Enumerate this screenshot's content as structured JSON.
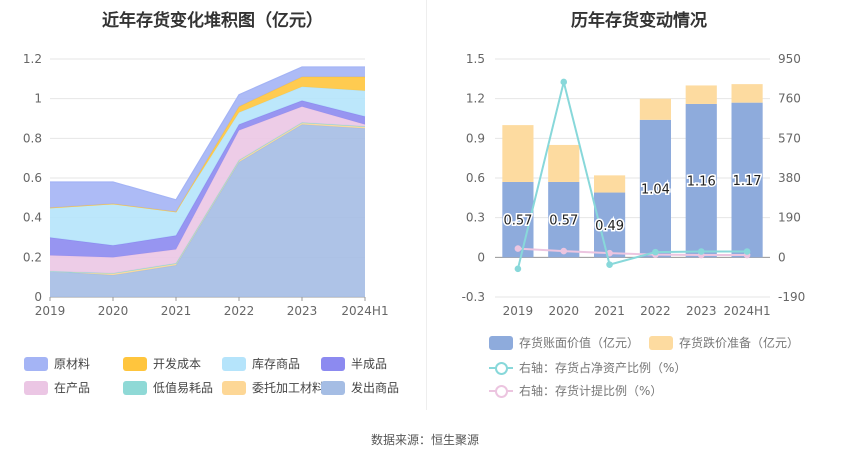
{
  "left_chart": {
    "title": "近年存货变化堆积图（亿元）"
  },
  "right_chart": {
    "title": "历年存货变动情况"
  },
  "footer": "数据来源：恒生聚源",
  "colors": {
    "原材料": "#a4b4f5",
    "开发成本": "#ffc53d",
    "库存商品": "#b5e4fb",
    "半成品": "#8c8af0",
    "在产品": "#ebc6e4",
    "低值易耗品": "#8fd9d6",
    "委托加工材料": "#fdd796",
    "发出商品": "#a5bde4",
    "book_value": "#8eabdc",
    "provision": "#fddba0",
    "ratio_net_assets": "#88d8da",
    "ratio_provision": "#ecc5e0"
  },
  "chart_data": [
    {
      "type": "area",
      "stacked": true,
      "title": "近年存货变化堆积图（亿元）",
      "categories": [
        "2019",
        "2020",
        "2021",
        "2022",
        "2023",
        "2024H1"
      ],
      "ylim": [
        0,
        1.2
      ],
      "yticks": [
        "0",
        "0.2",
        "0.4",
        "0.6",
        "0.8",
        "1",
        "1.2"
      ],
      "grid": true,
      "legend_position": "bottom",
      "series": [
        {
          "name": "发出商品",
          "values": [
            0.13,
            0.11,
            0.16,
            0.68,
            0.87,
            0.85
          ]
        },
        {
          "name": "委托加工材料",
          "values": [
            0.0,
            0.01,
            0.01,
            0.01,
            0.01,
            0.01
          ]
        },
        {
          "name": "低值易耗品",
          "values": [
            0.0,
            0.0,
            0.0,
            0.0,
            0.0,
            0.0
          ]
        },
        {
          "name": "在产品",
          "values": [
            0.08,
            0.08,
            0.07,
            0.15,
            0.08,
            0.01
          ]
        },
        {
          "name": "半成品",
          "values": [
            0.09,
            0.06,
            0.07,
            0.03,
            0.03,
            0.04
          ]
        },
        {
          "name": "库存商品",
          "values": [
            0.15,
            0.21,
            0.12,
            0.06,
            0.07,
            0.13
          ]
        },
        {
          "name": "开发成本",
          "values": [
            0.0,
            0.0,
            0.0,
            0.03,
            0.05,
            0.07
          ]
        },
        {
          "name": "原材料",
          "values": [
            0.13,
            0.11,
            0.06,
            0.06,
            0.05,
            0.05
          ]
        }
      ],
      "legend": [
        "原材料",
        "开发成本",
        "库存商品",
        "半成品",
        "在产品",
        "低值易耗品",
        "委托加工材料",
        "发出商品"
      ]
    },
    {
      "type": "bar",
      "stacked": true,
      "title": "历年存货变动情况",
      "categories": [
        "2019",
        "2020",
        "2021",
        "2022",
        "2023",
        "2024H1"
      ],
      "ylim": [
        -0.3,
        1.5
      ],
      "yticks": [
        "-0.3",
        "0",
        "0.3",
        "0.6",
        "0.9",
        "1.2",
        "1.5"
      ],
      "y2lim": [
        -190,
        950
      ],
      "y2ticks": [
        "-190",
        "0",
        "190",
        "380",
        "570",
        "760",
        "950"
      ],
      "grid": true,
      "legend_position": "bottom",
      "series": [
        {
          "name": "存货账面价值（亿元）",
          "values": [
            0.57,
            0.57,
            0.49,
            1.04,
            1.16,
            1.17
          ],
          "data_labels": [
            "0.57",
            "0.57",
            "0.49",
            "1.04",
            "1.16",
            "1.17"
          ]
        },
        {
          "name": "存货跌价准备（亿元）",
          "values": [
            0.43,
            0.28,
            0.13,
            0.16,
            0.14,
            0.14
          ]
        },
        {
          "name": "右轴：存货占净资产比例（%）",
          "type": "line",
          "axis": "right",
          "values": [
            -55,
            840,
            -35,
            25,
            28,
            28
          ]
        },
        {
          "name": "右轴：存货计提比例（%）",
          "type": "line",
          "axis": "right",
          "values": [
            42,
            30,
            20,
            13,
            11,
            11
          ]
        }
      ]
    }
  ]
}
